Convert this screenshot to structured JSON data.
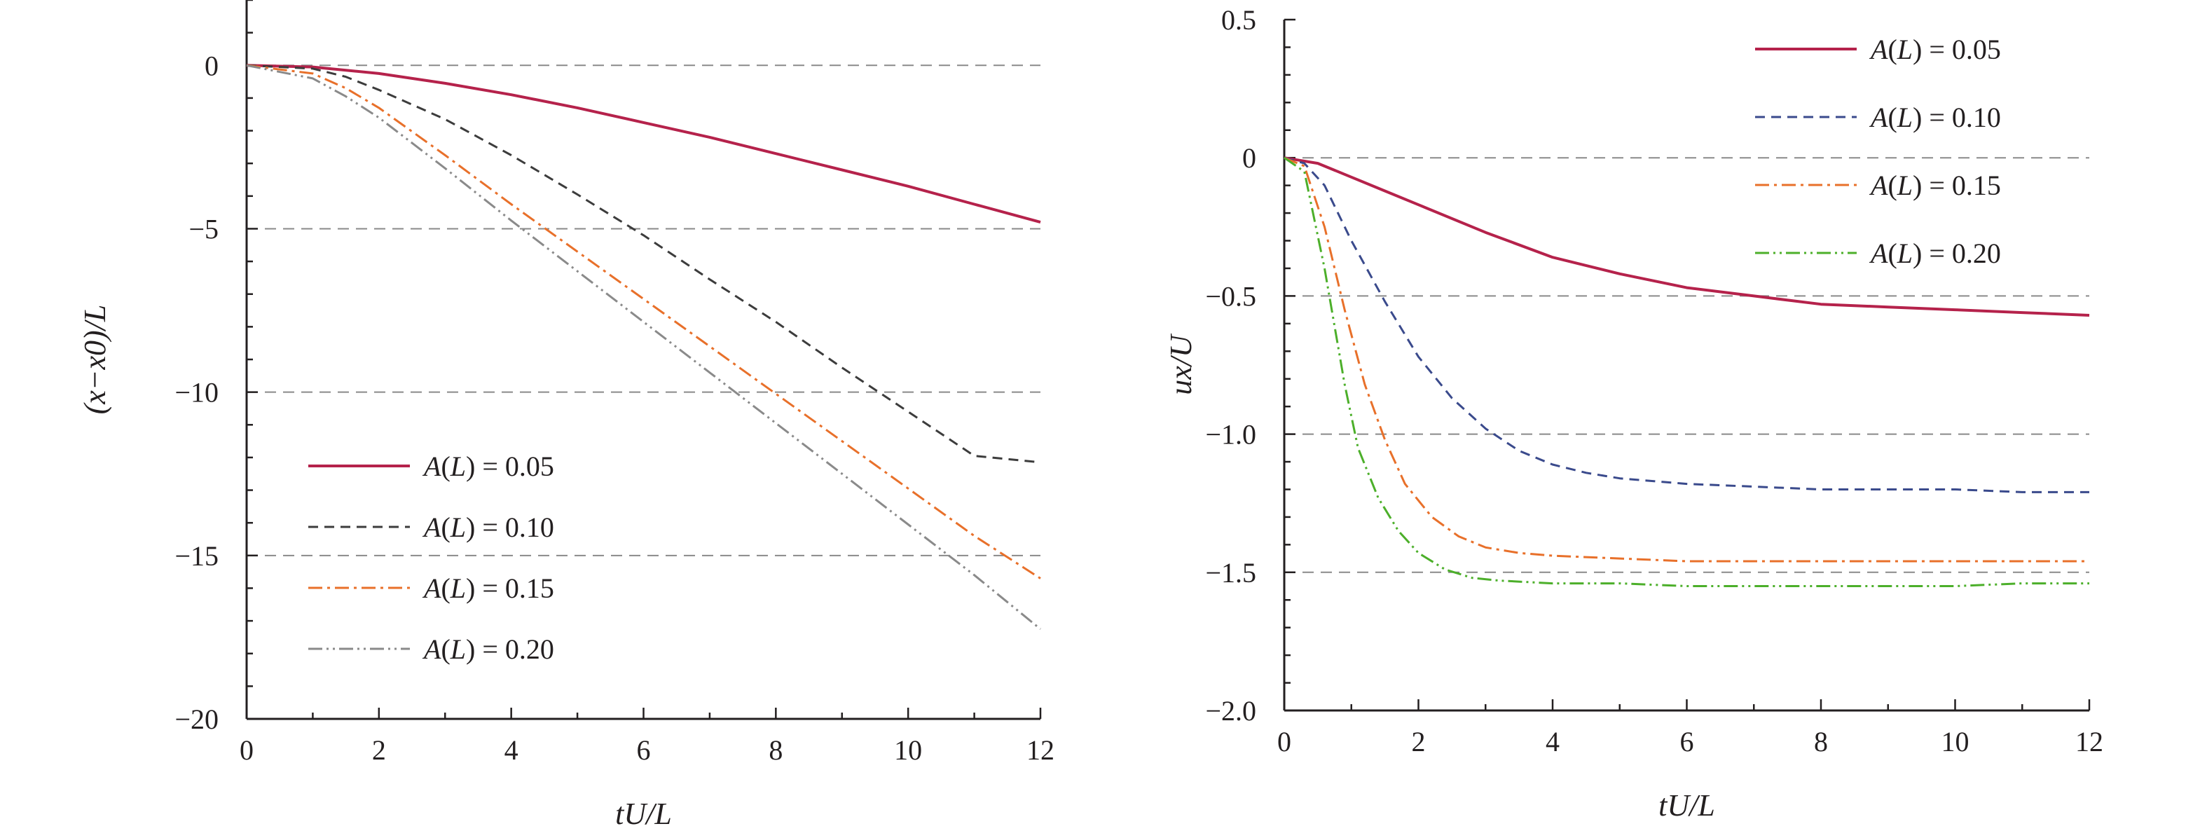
{
  "chart_data": [
    {
      "type": "line",
      "xlabel": "tU/L",
      "ylabel": "(x−x0)/L",
      "xlim": [
        0,
        12
      ],
      "ylim": [
        -20,
        2
      ],
      "x_ticks": [
        0,
        2,
        4,
        6,
        8,
        10,
        12
      ],
      "y_ticks": [
        0,
        -5,
        -10,
        -15,
        -20
      ],
      "x_tick_labels": [
        "0",
        "2",
        "4",
        "6",
        "8",
        "10",
        "12"
      ],
      "y_tick_labels": [
        "0",
        "−5",
        "−10",
        "−15",
        "−20"
      ],
      "grid": "horizontal dashed",
      "legend_position": "lower-left",
      "legend": [
        {
          "prefix": "A",
          "paren": "(",
          "var": "L",
          "suffix": ") = 0.05",
          "color": "#b5224b",
          "dash": "",
          "width": 4
        },
        {
          "prefix": "A",
          "paren": "(",
          "var": "L",
          "suffix": ") = 0.10",
          "color": "#3c3c3c",
          "dash": "14 9",
          "width": 3
        },
        {
          "prefix": "A",
          "paren": "(",
          "var": "L",
          "suffix": ") = 0.15",
          "color": "#e8702a",
          "dash": "20 7 4 7",
          "width": 3
        },
        {
          "prefix": "A",
          "paren": "(",
          "var": "L",
          "suffix": ") = 0.20",
          "color": "#8a8a8a",
          "dash": "20 6 3 6 3 6",
          "width": 3
        }
      ],
      "series": [
        {
          "name": "A(L) = 0.05",
          "x": [
            0,
            1,
            2,
            3,
            4,
            5,
            6,
            7,
            8,
            9,
            10,
            11,
            12
          ],
          "y": [
            0,
            -0.05,
            -0.25,
            -0.55,
            -0.9,
            -1.3,
            -1.75,
            -2.2,
            -2.7,
            -3.2,
            -3.7,
            -4.25,
            -4.8
          ]
        },
        {
          "name": "A(L) = 0.10",
          "x": [
            0,
            1,
            1.5,
            2,
            3,
            4,
            5,
            6,
            7,
            8,
            9,
            10,
            11,
            12
          ],
          "y": [
            0,
            -0.1,
            -0.35,
            -0.75,
            -1.65,
            -2.75,
            -3.95,
            -5.2,
            -6.55,
            -7.85,
            -9.25,
            -10.6,
            -11.95,
            -12.15
          ]
        },
        {
          "name": "A(L) = 0.15",
          "x": [
            0,
            1,
            1.5,
            2,
            3,
            4,
            5,
            6,
            7,
            8,
            9,
            10,
            11,
            12
          ],
          "y": [
            0,
            -0.25,
            -0.7,
            -1.3,
            -2.75,
            -4.25,
            -5.7,
            -7.15,
            -8.6,
            -10.05,
            -11.5,
            -12.95,
            -14.4,
            -15.7
          ]
        },
        {
          "name": "A(L) = 0.20",
          "x": [
            0,
            1,
            1.5,
            2,
            3,
            4,
            5,
            6,
            7,
            8,
            9,
            10,
            11,
            12
          ],
          "y": [
            0,
            -0.4,
            -0.95,
            -1.6,
            -3.15,
            -4.75,
            -6.3,
            -7.85,
            -9.4,
            -10.95,
            -12.5,
            -14.05,
            -15.6,
            -17.25
          ]
        }
      ]
    },
    {
      "type": "line",
      "xlabel": "tU/L",
      "ylabel": "ux/U",
      "xlim": [
        0,
        12
      ],
      "ylim": [
        -2.0,
        0.5
      ],
      "x_ticks": [
        0,
        2,
        4,
        6,
        8,
        10,
        12
      ],
      "y_ticks": [
        0.5,
        0,
        -0.5,
        -1.0,
        -1.5,
        -2.0
      ],
      "x_tick_labels": [
        "0",
        "2",
        "4",
        "6",
        "8",
        "10",
        "12"
      ],
      "y_tick_labels": [
        "0.5",
        "0",
        "−0.5",
        "−1.0",
        "−1.5",
        "−2.0"
      ],
      "grid": "horizontal dashed",
      "legend_position": "top-right",
      "legend": [
        {
          "prefix": "A",
          "paren": "(",
          "var": "L",
          "suffix": ") = 0.05",
          "color": "#b5224b",
          "dash": "",
          "width": 4
        },
        {
          "prefix": "A",
          "paren": "(",
          "var": "L",
          "suffix": ") = 0.10",
          "color": "#3a4a8c",
          "dash": "14 9",
          "width": 3
        },
        {
          "prefix": "A",
          "paren": "(",
          "var": "L",
          "suffix": ") = 0.15",
          "color": "#e8702a",
          "dash": "20 7 4 7",
          "width": 3
        },
        {
          "prefix": "A",
          "paren": "(",
          "var": "L",
          "suffix": ") = 0.20",
          "color": "#4caf2a",
          "dash": "20 6 3 6 3 6",
          "width": 3
        }
      ],
      "series": [
        {
          "name": "A(L) = 0.05",
          "x": [
            0,
            0.5,
            1,
            1.5,
            2,
            3,
            4,
            5,
            6,
            7,
            8,
            9,
            10,
            11,
            12
          ],
          "y": [
            0,
            -0.02,
            -0.07,
            -0.12,
            -0.17,
            -0.27,
            -0.36,
            -0.42,
            -0.47,
            -0.5,
            -0.53,
            -0.54,
            -0.55,
            -0.56,
            -0.57
          ]
        },
        {
          "name": "A(L) = 0.10",
          "x": [
            0,
            0.3,
            0.6,
            1,
            1.5,
            2,
            2.5,
            3,
            3.5,
            4,
            4.5,
            5,
            6,
            7,
            8,
            9,
            10,
            11,
            12
          ],
          "y": [
            0,
            -0.02,
            -0.1,
            -0.3,
            -0.52,
            -0.72,
            -0.87,
            -0.98,
            -1.06,
            -1.11,
            -1.14,
            -1.16,
            -1.18,
            -1.19,
            -1.2,
            -1.2,
            -1.2,
            -1.21,
            -1.21
          ]
        },
        {
          "name": "A(L) = 0.15",
          "x": [
            0,
            0.3,
            0.6,
            0.9,
            1.2,
            1.5,
            1.8,
            2.2,
            2.6,
            3,
            3.5,
            4,
            5,
            6,
            7,
            8,
            9,
            10,
            11,
            12
          ],
          "y": [
            0,
            -0.03,
            -0.25,
            -0.55,
            -0.82,
            -1.02,
            -1.18,
            -1.3,
            -1.37,
            -1.41,
            -1.43,
            -1.44,
            -1.45,
            -1.46,
            -1.46,
            -1.46,
            -1.46,
            -1.46,
            -1.46,
            -1.46
          ]
        },
        {
          "name": "A(L) = 0.20",
          "x": [
            0,
            0.3,
            0.6,
            0.9,
            1.1,
            1.4,
            1.7,
            2,
            2.4,
            2.8,
            3.2,
            4,
            5,
            6,
            7,
            8,
            9,
            10,
            11,
            12
          ],
          "y": [
            0,
            -0.05,
            -0.4,
            -0.82,
            -1.05,
            -1.23,
            -1.35,
            -1.43,
            -1.49,
            -1.52,
            -1.53,
            -1.54,
            -1.54,
            -1.55,
            -1.55,
            -1.55,
            -1.55,
            -1.55,
            -1.54,
            -1.54
          ]
        }
      ]
    }
  ]
}
